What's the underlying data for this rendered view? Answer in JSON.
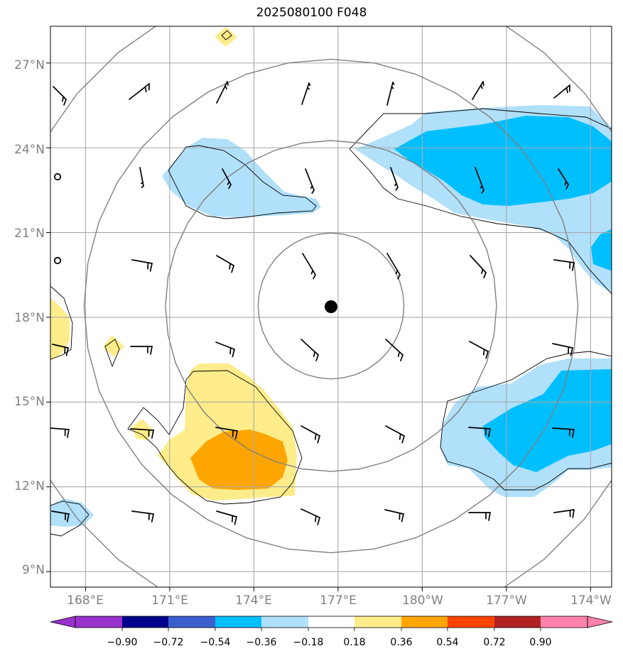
{
  "title": "2025080100 F048",
  "lat_labels": [
    "27°N",
    "24°N",
    "21°N",
    "18°N",
    "15°N",
    "12°N",
    "9°N"
  ],
  "lon_labels": [
    "168°E",
    "171°E",
    "174°E",
    "177°E",
    "180°W",
    "177°W",
    "174°W"
  ],
  "map": {
    "lon_range": [
      166.75,
      186.75
    ],
    "lat_range": [
      8.45,
      28.3
    ],
    "grid_lons": [
      168,
      171,
      174,
      177,
      180,
      183,
      186
    ],
    "grid_lats": [
      27,
      24,
      21,
      18,
      15,
      12,
      9
    ],
    "center_marker": {
      "lon": 176.75,
      "lat": 18.4
    },
    "range_ring_radii_deg": [
      2.6,
      5.9,
      8.8,
      11.8
    ]
  },
  "colorbar": {
    "labels": [
      "−0.90",
      "−0.72",
      "−0.54",
      "−0.36",
      "−0.18",
      "0.18",
      "0.36",
      "0.54",
      "0.72",
      "0.90"
    ],
    "colors": [
      "#9932cc",
      "#00008b",
      "#3a5fcd",
      "#00bfff",
      "#b0e0fa",
      "#ffffff",
      "#ffec8b",
      "#ffa500",
      "#ff4500",
      "#b22222",
      "#ff82ab"
    ],
    "extend": "both"
  }
}
